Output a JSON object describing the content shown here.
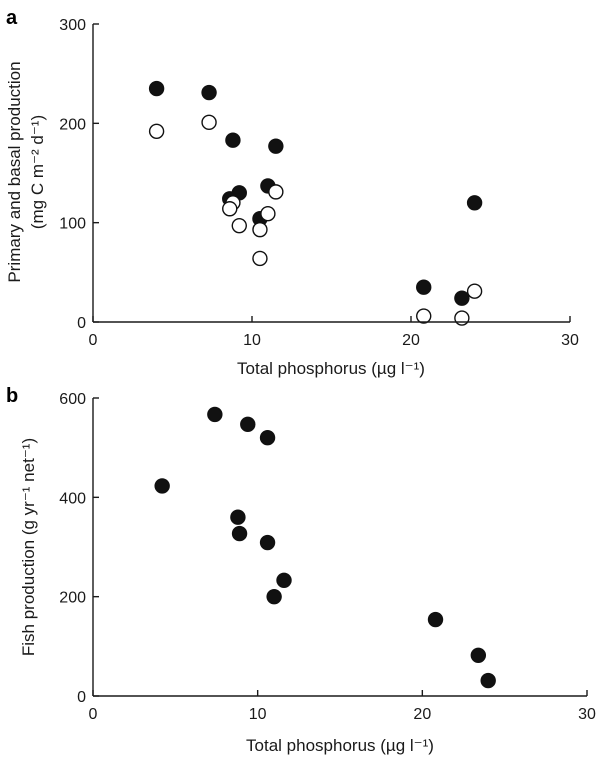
{
  "colors": {
    "ink": "#1a1a1a",
    "filled": "#111111",
    "open_fill": "#ffffff"
  },
  "chart_data": [
    {
      "type": "scatter",
      "panel_label": "a",
      "title": "",
      "xlabel": "Total phosphorus (µg l⁻¹)",
      "ylabel_line1": "Primary and basal production",
      "ylabel_line2": "(mg C m⁻² d⁻¹)",
      "xlim": [
        0,
        30
      ],
      "ylim": [
        0,
        300
      ],
      "xticks": [
        0,
        10,
        20,
        30
      ],
      "yticks": [
        0,
        100,
        200,
        300
      ],
      "grid": false,
      "series": [
        {
          "name": "Primary production",
          "marker": "filled",
          "points": [
            [
              4.0,
              235
            ],
            [
              7.3,
              231
            ],
            [
              8.8,
              183
            ],
            [
              11.5,
              177
            ],
            [
              9.2,
              130
            ],
            [
              11.0,
              137
            ],
            [
              8.6,
              124
            ],
            [
              10.5,
              104
            ],
            [
              20.8,
              35
            ],
            [
              23.2,
              24
            ],
            [
              24.0,
              120
            ]
          ]
        },
        {
          "name": "Basal production",
          "marker": "open",
          "points": [
            [
              4.0,
              192
            ],
            [
              7.3,
              201
            ],
            [
              8.8,
              120
            ],
            [
              8.6,
              114
            ],
            [
              9.2,
              97
            ],
            [
              11.5,
              131
            ],
            [
              11.0,
              109
            ],
            [
              10.5,
              93
            ],
            [
              10.5,
              64
            ],
            [
              20.8,
              6
            ],
            [
              23.2,
              4
            ],
            [
              24.0,
              31
            ]
          ]
        }
      ]
    },
    {
      "type": "scatter",
      "panel_label": "b",
      "title": "",
      "xlabel": "Total phosphorus (µg l⁻¹)",
      "ylabel_line1": "Fish production (g yr⁻¹ net⁻¹)",
      "ylabel_line2": "",
      "xlim": [
        0,
        30
      ],
      "ylim": [
        0,
        600
      ],
      "xticks": [
        0,
        10,
        20,
        30
      ],
      "yticks": [
        0,
        200,
        400,
        600
      ],
      "grid": false,
      "series": [
        {
          "name": "Fish production",
          "marker": "filled",
          "points": [
            [
              4.2,
              423
            ],
            [
              7.4,
              567
            ],
            [
              9.4,
              547
            ],
            [
              10.6,
              520
            ],
            [
              8.8,
              360
            ],
            [
              8.9,
              327
            ],
            [
              10.6,
              309
            ],
            [
              11.6,
              233
            ],
            [
              11.0,
              200
            ],
            [
              20.8,
              154
            ],
            [
              23.4,
              82
            ],
            [
              24.0,
              31
            ]
          ]
        }
      ]
    }
  ]
}
